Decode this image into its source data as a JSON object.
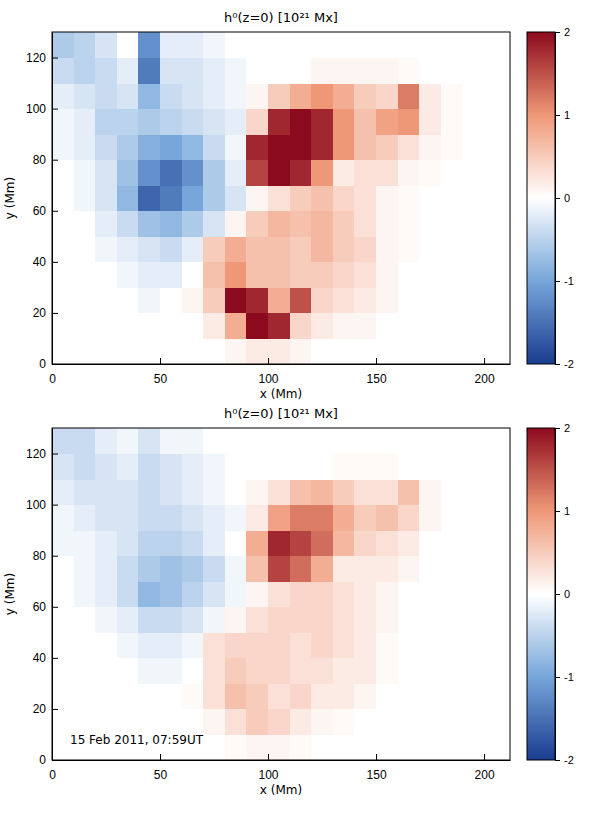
{
  "chart_data": [
    {
      "type": "heatmap",
      "title": "h⁰(z=0) [10²¹ Mx]",
      "x_label": "x (Mm)",
      "y_label": "y (Mm)",
      "xlim": [
        0,
        212
      ],
      "xticks": [
        0,
        50,
        100,
        150,
        200
      ],
      "ylim": [
        0,
        130
      ],
      "yticks": [
        0,
        20,
        40,
        60,
        80,
        100,
        120
      ],
      "x_bins": [
        0,
        10,
        20,
        30,
        40,
        50,
        60,
        70,
        80,
        90,
        100,
        110,
        120,
        130,
        140,
        150,
        160,
        170,
        180,
        190,
        200,
        210
      ],
      "y_bins": [
        0,
        10,
        20,
        30,
        40,
        50,
        60,
        70,
        80,
        90,
        100,
        110,
        120,
        130
      ],
      "z": [
        [
          0,
          0,
          0,
          0,
          0,
          0,
          0,
          0,
          0.1,
          0.2,
          0.2,
          0.1,
          0,
          0,
          0,
          0,
          0,
          0,
          0,
          0,
          0
        ],
        [
          0,
          0,
          0,
          0,
          0,
          0,
          0,
          0.2,
          0.8,
          2.0,
          1.8,
          0.4,
          0.2,
          0.1,
          0.1,
          0,
          0,
          0,
          0,
          0,
          0
        ],
        [
          0,
          0,
          0,
          0,
          -0.1,
          0,
          0.1,
          0.5,
          2.0,
          1.8,
          0.8,
          1.5,
          0.4,
          0.3,
          0.2,
          0.1,
          0,
          0,
          0,
          0,
          0
        ],
        [
          0,
          0,
          0,
          -0.1,
          -0.2,
          -0.2,
          0,
          0.6,
          1.0,
          0.6,
          0.6,
          0.5,
          0.5,
          0.4,
          0.3,
          0.1,
          0,
          0,
          0,
          0,
          0
        ],
        [
          0,
          0,
          -0.1,
          -0.2,
          -0.3,
          -0.4,
          -0.2,
          0.5,
          0.8,
          0.6,
          0.6,
          0.5,
          0.7,
          0.5,
          0.4,
          0.1,
          0.05,
          0,
          0,
          0,
          0
        ],
        [
          0,
          0,
          -0.2,
          -0.4,
          -0.7,
          -0.8,
          -0.6,
          -0.3,
          0.1,
          0.5,
          0.7,
          0.6,
          0.7,
          0.5,
          0.3,
          0.1,
          0.05,
          0,
          0,
          0,
          0
        ],
        [
          0,
          -0.1,
          -0.3,
          -0.8,
          -1.6,
          -1.4,
          -1.0,
          -0.6,
          -0.3,
          0.1,
          0.3,
          0.5,
          0.6,
          0.4,
          0.3,
          0.1,
          0.05,
          0,
          0,
          0,
          0
        ],
        [
          0,
          -0.1,
          -0.3,
          -0.7,
          -1.2,
          -1.5,
          -1.2,
          -0.6,
          -0.2,
          1.6,
          2.0,
          1.8,
          1.0,
          0.2,
          0.3,
          0.3,
          0.1,
          0.05,
          0,
          0,
          0
        ],
        [
          -0.1,
          -0.2,
          -0.4,
          -0.6,
          -0.9,
          -1.0,
          -0.8,
          -0.4,
          -0.1,
          1.8,
          2.0,
          2.0,
          1.8,
          1.0,
          0.6,
          0.5,
          0.3,
          0.1,
          0.05,
          0,
          0
        ],
        [
          -0.1,
          -0.2,
          -0.5,
          -0.5,
          -0.6,
          -0.5,
          -0.4,
          -0.3,
          -0.2,
          0.4,
          1.8,
          2.0,
          1.8,
          1.0,
          0.6,
          0.9,
          1.0,
          0.2,
          0.05,
          0,
          0
        ],
        [
          -0.2,
          -0.3,
          -0.4,
          -0.3,
          -0.8,
          -0.4,
          -0.3,
          -0.2,
          -0.1,
          0.1,
          0.5,
          0.8,
          1.0,
          0.8,
          0.5,
          0.4,
          1.2,
          0.2,
          0.05,
          0,
          0
        ],
        [
          -0.4,
          -0.5,
          -0.4,
          -0.2,
          -1.4,
          -0.3,
          -0.3,
          -0.2,
          -0.1,
          0,
          0,
          0,
          0.1,
          0.1,
          0.1,
          0.1,
          0.05,
          0,
          0,
          0,
          0
        ],
        [
          -0.6,
          -0.5,
          -0.3,
          0,
          -1.2,
          -0.2,
          -0.2,
          -0.1,
          0,
          0,
          0,
          0,
          0,
          0,
          0,
          0,
          0,
          0,
          0,
          0,
          0
        ]
      ],
      "colorbar_lim": [
        -2,
        2
      ],
      "colorbar_ticks": [
        -2,
        -1,
        0,
        1,
        2
      ]
    },
    {
      "type": "heatmap",
      "title": "h⁰(z=0) [10²¹ Mx]",
      "x_label": "x (Mm)",
      "y_label": "y (Mm)",
      "xlim": [
        0,
        212
      ],
      "xticks": [
        0,
        50,
        100,
        150,
        200
      ],
      "ylim": [
        0,
        130
      ],
      "yticks": [
        0,
        20,
        40,
        60,
        80,
        100,
        120
      ],
      "x_bins": [
        0,
        10,
        20,
        30,
        40,
        50,
        60,
        70,
        80,
        90,
        100,
        110,
        120,
        130,
        140,
        150,
        160,
        170,
        180,
        190,
        200,
        210
      ],
      "y_bins": [
        0,
        10,
        20,
        30,
        40,
        50,
        60,
        70,
        80,
        90,
        100,
        110,
        120,
        130
      ],
      "z": [
        [
          0,
          0,
          0,
          0,
          0,
          0,
          0,
          0,
          0.05,
          0.1,
          0.1,
          0.05,
          0,
          0,
          0,
          0,
          0,
          0,
          0,
          0,
          0
        ],
        [
          0,
          0,
          0,
          0,
          0,
          0,
          0,
          0.1,
          0.3,
          0.5,
          0.4,
          0.2,
          0.1,
          0.05,
          0,
          0,
          0,
          0,
          0,
          0,
          0
        ],
        [
          0,
          0,
          0,
          0,
          0,
          0,
          0.05,
          0.3,
          0.6,
          0.5,
          0.3,
          0.4,
          0.2,
          0.2,
          0.1,
          0,
          0,
          0,
          0,
          0,
          0
        ],
        [
          0,
          0,
          0,
          0,
          -0.1,
          -0.1,
          0,
          0.3,
          0.5,
          0.4,
          0.4,
          0.3,
          0.3,
          0.2,
          0.2,
          0.05,
          0,
          0,
          0,
          0,
          0
        ],
        [
          0,
          0,
          0,
          -0.1,
          -0.2,
          -0.2,
          -0.1,
          0.3,
          0.4,
          0.4,
          0.4,
          0.3,
          0.4,
          0.3,
          0.2,
          0.05,
          0,
          0,
          0,
          0,
          0
        ],
        [
          0,
          0,
          -0.1,
          -0.2,
          -0.4,
          -0.4,
          -0.3,
          -0.1,
          0.1,
          0.3,
          0.4,
          0.4,
          0.4,
          0.3,
          0.2,
          0.1,
          0,
          0,
          0,
          0,
          0
        ],
        [
          0,
          -0.1,
          -0.2,
          -0.4,
          -0.8,
          -0.7,
          -0.5,
          -0.3,
          -0.1,
          0.1,
          0.3,
          0.4,
          0.4,
          0.3,
          0.2,
          0.1,
          0,
          0,
          0,
          0,
          0
        ],
        [
          0,
          -0.1,
          -0.2,
          -0.4,
          -0.6,
          -0.7,
          -0.6,
          -0.4,
          -0.1,
          0.6,
          1.6,
          1.3,
          0.8,
          0.2,
          0.2,
          0.2,
          0.1,
          0,
          0,
          0,
          0
        ],
        [
          -0.1,
          -0.1,
          -0.2,
          -0.3,
          -0.5,
          -0.5,
          -0.4,
          -0.2,
          0,
          0.8,
          1.8,
          1.6,
          1.3,
          0.7,
          0.4,
          0.3,
          0.2,
          0,
          0,
          0,
          0
        ],
        [
          -0.1,
          -0.2,
          -0.3,
          -0.3,
          -0.4,
          -0.4,
          -0.3,
          -0.2,
          -0.1,
          0.2,
          0.9,
          1.2,
          1.2,
          0.8,
          0.5,
          0.6,
          0.4,
          0.1,
          0,
          0,
          0
        ],
        [
          -0.2,
          -0.3,
          -0.3,
          -0.3,
          -0.4,
          -0.3,
          -0.2,
          -0.1,
          0,
          0.1,
          0.3,
          0.6,
          0.7,
          0.5,
          0.3,
          0.3,
          0.6,
          0.1,
          0,
          0,
          0
        ],
        [
          -0.3,
          -0.4,
          -0.3,
          -0.2,
          -0.4,
          -0.3,
          -0.2,
          -0.1,
          0,
          0,
          0,
          0,
          0,
          0.05,
          0.05,
          0.05,
          0,
          0,
          0,
          0,
          0
        ],
        [
          -0.4,
          -0.4,
          -0.2,
          -0.1,
          -0.3,
          -0.1,
          -0.1,
          0,
          0,
          0,
          0,
          0,
          0,
          0,
          0,
          0,
          0,
          0,
          0,
          0,
          0
        ]
      ],
      "colorbar_lim": [
        -2,
        2
      ],
      "colorbar_ticks": [
        -2,
        -1,
        0,
        1,
        2
      ],
      "annotations": [
        "15 Feb 2011, 07:59UT"
      ]
    }
  ]
}
